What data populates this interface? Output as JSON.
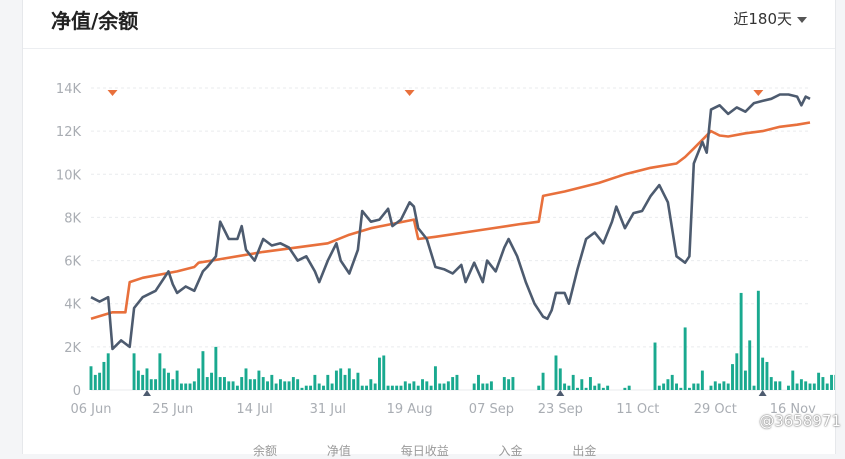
{
  "header": {
    "title": "净值/余额",
    "range_label": "近180天"
  },
  "watermark": "@3658971",
  "legend_items": [
    "余额",
    "净值",
    "每日收益",
    "入金",
    "出金"
  ],
  "colors": {
    "net_value": "#4d5b6f",
    "balance": "#e8703c",
    "bars": "#19a98f",
    "marker_down": "#e8703c",
    "marker_up": "#4d5b6f",
    "grid": "#e9ebee"
  },
  "chart_data": {
    "type": "line",
    "ylim": [
      0,
      14000
    ],
    "yticks": [
      {
        "value": 0,
        "label": "0"
      },
      {
        "value": 2000,
        "label": "2K"
      },
      {
        "value": 4000,
        "label": "4K"
      },
      {
        "value": 6000,
        "label": "6K"
      },
      {
        "value": 8000,
        "label": "8K"
      },
      {
        "value": 10000,
        "label": "10K"
      },
      {
        "value": 12000,
        "label": "12K"
      },
      {
        "value": 14000,
        "label": "14K"
      }
    ],
    "xrange": [
      0,
      167
    ],
    "xticks": [
      {
        "day": 0,
        "label": "06 Jun"
      },
      {
        "day": 19,
        "label": "25 Jun"
      },
      {
        "day": 38,
        "label": "14 Jul"
      },
      {
        "day": 55,
        "label": "31 Jul"
      },
      {
        "day": 74,
        "label": "19 Aug"
      },
      {
        "day": 93,
        "label": "07 Sep"
      },
      {
        "day": 109,
        "label": "23 Sep"
      },
      {
        "day": 127,
        "label": "11 Oct"
      },
      {
        "day": 145,
        "label": "29 Oct"
      },
      {
        "day": 163,
        "label": "16 Nov"
      }
    ],
    "series": [
      {
        "key": "net_value",
        "points": [
          [
            0,
            4300
          ],
          [
            2,
            4100
          ],
          [
            4,
            4300
          ],
          [
            5,
            1900
          ],
          [
            7,
            2300
          ],
          [
            9,
            2000
          ],
          [
            10,
            3800
          ],
          [
            12,
            4300
          ],
          [
            15,
            4600
          ],
          [
            18,
            5500
          ],
          [
            19,
            4900
          ],
          [
            20,
            4500
          ],
          [
            22,
            4800
          ],
          [
            24,
            4600
          ],
          [
            26,
            5500
          ],
          [
            27,
            5700
          ],
          [
            29,
            6200
          ],
          [
            30,
            7800
          ],
          [
            32,
            7000
          ],
          [
            34,
            7000
          ],
          [
            35,
            7600
          ],
          [
            36,
            6500
          ],
          [
            38,
            6000
          ],
          [
            40,
            7000
          ],
          [
            42,
            6700
          ],
          [
            44,
            6800
          ],
          [
            46,
            6600
          ],
          [
            48,
            6000
          ],
          [
            50,
            6200
          ],
          [
            52,
            5500
          ],
          [
            53,
            5000
          ],
          [
            55,
            6000
          ],
          [
            57,
            6800
          ],
          [
            58,
            6000
          ],
          [
            60,
            5400
          ],
          [
            62,
            6500
          ],
          [
            63,
            8300
          ],
          [
            65,
            7800
          ],
          [
            67,
            7900
          ],
          [
            69,
            8400
          ],
          [
            70,
            7600
          ],
          [
            72,
            7900
          ],
          [
            74,
            8700
          ],
          [
            75,
            8500
          ],
          [
            76,
            7500
          ],
          [
            78,
            7000
          ],
          [
            80,
            5700
          ],
          [
            82,
            5600
          ],
          [
            84,
            5400
          ],
          [
            86,
            5800
          ],
          [
            87,
            5000
          ],
          [
            89,
            5900
          ],
          [
            91,
            5000
          ],
          [
            92,
            6000
          ],
          [
            94,
            5500
          ],
          [
            96,
            6600
          ],
          [
            97,
            7000
          ],
          [
            99,
            6200
          ],
          [
            101,
            5000
          ],
          [
            103,
            4000
          ],
          [
            105,
            3400
          ],
          [
            106,
            3300
          ],
          [
            107,
            3700
          ],
          [
            108,
            4500
          ],
          [
            110,
            4500
          ],
          [
            111,
            4000
          ],
          [
            113,
            5600
          ],
          [
            115,
            7000
          ],
          [
            117,
            7300
          ],
          [
            119,
            6800
          ],
          [
            121,
            7800
          ],
          [
            122,
            8500
          ],
          [
            124,
            7500
          ],
          [
            126,
            8200
          ],
          [
            128,
            8300
          ],
          [
            130,
            9000
          ],
          [
            132,
            9500
          ],
          [
            134,
            8700
          ],
          [
            136,
            6200
          ],
          [
            138,
            5900
          ],
          [
            139,
            6200
          ],
          [
            140,
            10500
          ],
          [
            142,
            11500
          ],
          [
            143,
            11000
          ],
          [
            144,
            13000
          ],
          [
            146,
            13200
          ],
          [
            148,
            12800
          ],
          [
            150,
            13100
          ],
          [
            152,
            12900
          ],
          [
            154,
            13300
          ],
          [
            156,
            13400
          ],
          [
            158,
            13500
          ],
          [
            160,
            13700
          ],
          [
            162,
            13700
          ],
          [
            164,
            13600
          ],
          [
            165,
            13200
          ],
          [
            166,
            13600
          ],
          [
            167,
            13500
          ]
        ]
      },
      {
        "key": "balance",
        "points": [
          [
            0,
            3300
          ],
          [
            5,
            3600
          ],
          [
            8,
            3600
          ],
          [
            9,
            5000
          ],
          [
            12,
            5200
          ],
          [
            20,
            5500
          ],
          [
            24,
            5700
          ],
          [
            25,
            5900
          ],
          [
            28,
            6000
          ],
          [
            40,
            6400
          ],
          [
            55,
            6800
          ],
          [
            60,
            7200
          ],
          [
            65,
            7500
          ],
          [
            70,
            7700
          ],
          [
            75,
            7900
          ],
          [
            76,
            7000
          ],
          [
            80,
            7100
          ],
          [
            90,
            7400
          ],
          [
            100,
            7700
          ],
          [
            104,
            7800
          ],
          [
            105,
            9000
          ],
          [
            110,
            9200
          ],
          [
            118,
            9600
          ],
          [
            124,
            10000
          ],
          [
            130,
            10300
          ],
          [
            136,
            10500
          ],
          [
            138,
            10800
          ],
          [
            140,
            11200
          ],
          [
            141,
            11400
          ],
          [
            142,
            11600
          ],
          [
            144,
            12000
          ],
          [
            146,
            11800
          ],
          [
            148,
            11750
          ],
          [
            152,
            11900
          ],
          [
            156,
            12000
          ],
          [
            160,
            12200
          ],
          [
            164,
            12300
          ],
          [
            167,
            12400
          ]
        ]
      }
    ],
    "daily_profit": [
      1100,
      700,
      800,
      1300,
      1700,
      0,
      0,
      0,
      0,
      0,
      1700,
      900,
      700,
      1000,
      500,
      500,
      1700,
      1000,
      800,
      500,
      900,
      300,
      300,
      300,
      400,
      1000,
      1800,
      600,
      800,
      2000,
      600,
      600,
      400,
      400,
      200,
      600,
      1000,
      500,
      500,
      900,
      600,
      400,
      700,
      300,
      500,
      400,
      400,
      600,
      500,
      100,
      200,
      200,
      700,
      300,
      200,
      700,
      300,
      900,
      1000,
      700,
      1000,
      500,
      800,
      200,
      200,
      500,
      300,
      1500,
      1600,
      200,
      200,
      200,
      200,
      400,
      300,
      400,
      200,
      500,
      400,
      200,
      1100,
      300,
      300,
      400,
      600,
      700,
      0,
      0,
      0,
      300,
      700,
      300,
      300,
      400,
      0,
      0,
      600,
      500,
      600,
      0,
      0,
      0,
      0,
      0,
      200,
      800,
      0,
      0,
      1600,
      1000,
      300,
      200,
      700,
      100,
      500,
      100,
      600,
      200,
      300,
      100,
      200,
      0,
      0,
      0,
      100,
      200,
      0,
      0,
      0,
      0,
      0,
      2200,
      200,
      300,
      500,
      700,
      300,
      100,
      2900,
      100,
      300,
      300,
      900,
      0,
      200,
      400,
      300,
      400,
      300,
      1200,
      1700,
      4500,
      900,
      2300,
      200,
      4600,
      1500,
      1300,
      600,
      400,
      400,
      0,
      200,
      900,
      300,
      500,
      400,
      300,
      300,
      800,
      600,
      300,
      700,
      700,
      300
    ]
  },
  "markers": {
    "down": [
      5,
      74,
      155
    ],
    "up": [
      13,
      109,
      156
    ]
  }
}
